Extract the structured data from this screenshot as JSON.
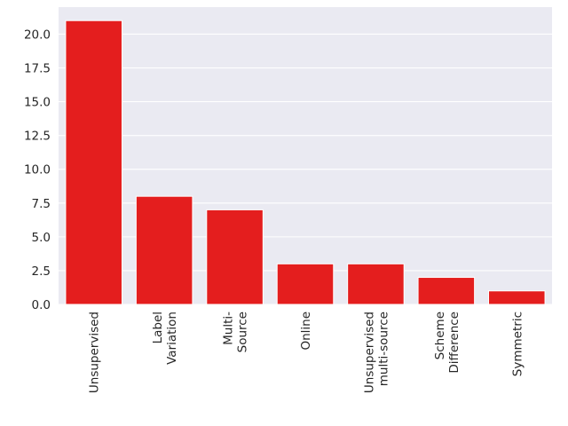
{
  "chart_data": {
    "type": "bar",
    "title": "",
    "xlabel": "",
    "ylabel": "",
    "categories": [
      [
        "Unsupervised"
      ],
      [
        "Label",
        "Variation"
      ],
      [
        "Multi-",
        "Source"
      ],
      [
        "Online"
      ],
      [
        "Unsupervised",
        "multi-source"
      ],
      [
        "Scheme",
        "Difference"
      ],
      [
        "Symmetric"
      ]
    ],
    "values": [
      21,
      8,
      7,
      3,
      3,
      2,
      1
    ],
    "ylim": [
      0,
      22
    ],
    "yticks": [
      "0.0",
      "2.5",
      "5.0",
      "7.5",
      "10.0",
      "12.5",
      "15.0",
      "17.5",
      "20.0"
    ],
    "grid": true,
    "colors": {
      "bar": "#e41e1e",
      "background": "#eaeaf2",
      "grid": "#ffffff"
    }
  }
}
